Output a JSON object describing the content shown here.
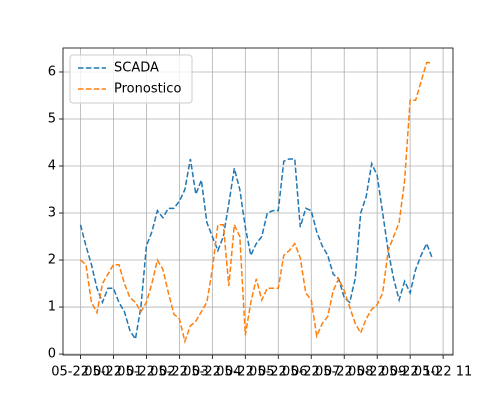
{
  "chart_data": {
    "type": "line",
    "x": [
      0,
      0.1667,
      0.3333,
      0.5,
      0.6667,
      0.8333,
      1,
      1.1667,
      1.3333,
      1.5,
      1.6667,
      1.8333,
      2,
      2.1667,
      2.3333,
      2.5,
      2.6667,
      2.8333,
      3,
      3.1667,
      3.3333,
      3.5,
      3.6667,
      3.8333,
      4,
      4.1667,
      4.3333,
      4.5,
      4.6667,
      4.8333,
      5,
      5.1667,
      5.3333,
      5.5,
      5.6667,
      5.8333,
      6,
      6.1667,
      6.3333,
      6.5,
      6.6667,
      6.8333,
      7,
      7.1667,
      7.3333,
      7.5,
      7.6667,
      7.8333,
      8,
      8.1667,
      8.3333,
      8.5,
      8.6667,
      8.8333,
      9,
      9.1667,
      9.3333,
      9.5,
      9.6667,
      9.8333,
      10,
      10.1667,
      10.3333,
      10.5,
      10.6667
    ],
    "series": [
      {
        "name": "SCADA",
        "color": "#1f77b4",
        "values": [
          2.75,
          2.3,
          1.9,
          1.4,
          1.1,
          1.4,
          1.4,
          1.1,
          0.9,
          0.5,
          0.32,
          1.0,
          2.3,
          2.6,
          3.05,
          2.9,
          3.1,
          3.1,
          3.25,
          3.5,
          4.15,
          3.4,
          3.7,
          2.8,
          2.5,
          2.2,
          2.5,
          3.2,
          3.95,
          3.5,
          2.7,
          2.1,
          2.35,
          2.5,
          3.0,
          3.05,
          3.05,
          4.1,
          4.15,
          4.15,
          2.7,
          3.1,
          3.05,
          2.6,
          2.3,
          2.1,
          1.7,
          1.6,
          1.2,
          1.1,
          1.6,
          3.0,
          3.35,
          4.05,
          3.8,
          3.0,
          2.2,
          1.6,
          1.15,
          1.55,
          1.3,
          1.8,
          2.1,
          2.35,
          2.05
        ]
      },
      {
        "name": "Pronostico",
        "color": "#ff7f0e",
        "values": [
          2.0,
          1.9,
          1.1,
          0.88,
          1.5,
          1.7,
          1.9,
          1.9,
          1.5,
          1.2,
          1.1,
          0.9,
          1.1,
          1.5,
          2.0,
          1.8,
          1.3,
          0.85,
          0.75,
          0.27,
          0.6,
          0.7,
          0.9,
          1.1,
          1.8,
          2.75,
          2.75,
          1.45,
          2.75,
          2.5,
          0.4,
          1.1,
          1.6,
          1.15,
          1.4,
          1.4,
          1.4,
          2.1,
          2.2,
          2.35,
          2.05,
          1.3,
          1.15,
          0.38,
          0.65,
          0.8,
          1.35,
          1.6,
          1.35,
          1.0,
          0.65,
          0.45,
          0.75,
          0.95,
          1.05,
          1.3,
          2.2,
          2.5,
          2.8,
          3.7,
          5.4,
          5.4,
          5.8,
          6.2,
          6.2
        ]
      }
    ],
    "xlim": [
      -0.53,
      11.3
    ],
    "xticks": [
      {
        "value": 0,
        "label": "05-22 00"
      },
      {
        "value": 1,
        "label": "05-22 01"
      },
      {
        "value": 2,
        "label": "05-22 02"
      },
      {
        "value": 3,
        "label": "05-22 03"
      },
      {
        "value": 4,
        "label": "05-22 04"
      },
      {
        "value": 5,
        "label": "05-22 05"
      },
      {
        "value": 6,
        "label": "05-22 06"
      },
      {
        "value": 7,
        "label": "05-22 07"
      },
      {
        "value": 8,
        "label": "05-22 08"
      },
      {
        "value": 9,
        "label": "05-22 09"
      },
      {
        "value": 10,
        "label": "05-22 10"
      },
      {
        "value": 11,
        "label": "05-22 11"
      }
    ],
    "ylim": [
      -0.02,
      6.51
    ],
    "yticks": [
      0,
      1,
      2,
      3,
      4,
      5,
      6
    ],
    "grid": true,
    "legend": "upper left"
  }
}
